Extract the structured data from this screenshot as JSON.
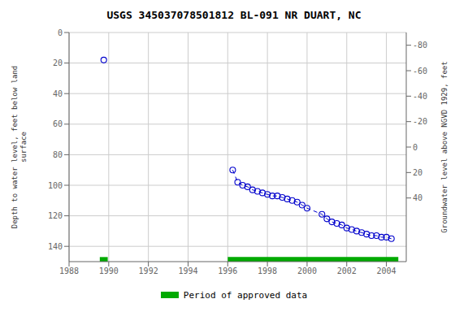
{
  "chart_data": {
    "type": "line",
    "title": "USGS 345037078501812 BL-091 NR DUART, NC",
    "ylabel": "Depth to water level, feet below land\nsurface",
    "y2label": "Groundwater level above NGVD 1929, feet",
    "xlim": [
      1988,
      2005
    ],
    "xticks": [
      1988,
      1990,
      1992,
      1994,
      1996,
      1998,
      2000,
      2002,
      2004
    ],
    "ylim": [
      150,
      0
    ],
    "yticks": [
      0,
      20,
      40,
      60,
      80,
      100,
      120,
      140
    ],
    "y2lim": [
      90,
      -90
    ],
    "y2ticks": [
      40,
      20,
      0,
      -20,
      -40,
      -60,
      -80
    ],
    "grid": true,
    "legend": "bottom",
    "series": [
      {
        "type": "scatter",
        "color": "#0000cc",
        "marker": "circle",
        "x": [
          1989.75
        ],
        "values": [
          18
        ]
      },
      {
        "type": "line",
        "color": "#0000cc",
        "marker": "circle",
        "line_style": "dashed",
        "x": [
          1996.25,
          1996.5,
          1996.75,
          1997.0,
          1997.25,
          1997.5,
          1997.75,
          1998.0,
          1998.25,
          1998.5,
          1998.75,
          1999.0,
          1999.25,
          1999.5,
          1999.75,
          2000.0,
          2000.75,
          2001.0,
          2001.25,
          2001.5,
          2001.75,
          2002.0,
          2002.25,
          2002.5,
          2002.75,
          2003.0,
          2003.25,
          2003.5,
          2003.75,
          2004.0,
          2004.25
        ],
        "values": [
          90,
          98,
          100,
          101,
          103,
          104,
          105,
          106,
          107,
          107,
          108,
          109,
          110,
          111,
          113,
          115,
          119,
          122,
          124,
          125,
          126,
          128,
          129,
          130,
          131,
          132,
          133,
          133,
          134,
          134,
          135
        ]
      },
      {
        "name": "Period of approved data",
        "type": "band",
        "color": "#00aa00",
        "periods": [
          [
            1989.55,
            1989.95
          ],
          [
            1996.0,
            2004.6
          ]
        ],
        "y_range": [
          147,
          150
        ]
      }
    ]
  }
}
